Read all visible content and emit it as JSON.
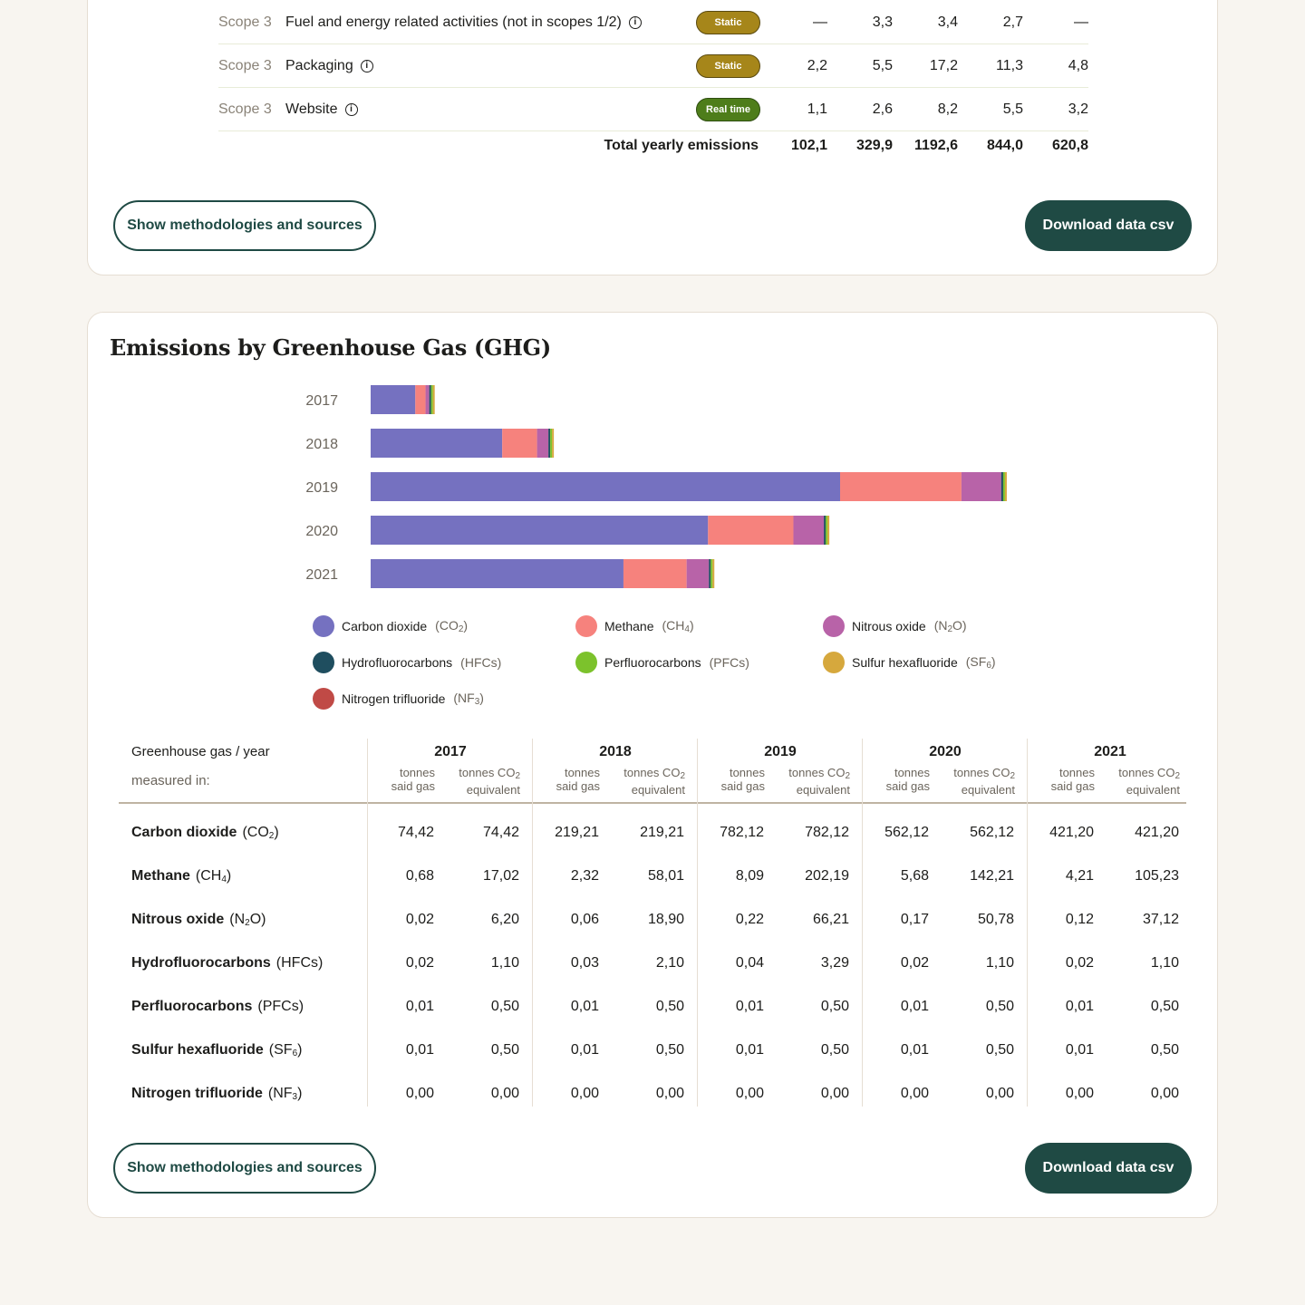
{
  "scope_table": {
    "rows": [
      {
        "scope": "Scope 3",
        "activity": "Fuel and energy related activities (not in scopes 1/2)",
        "badge": "Static",
        "values": [
          "—",
          "3,3",
          "3,4",
          "2,7",
          "—"
        ]
      },
      {
        "scope": "Scope 3",
        "activity": "Packaging",
        "badge": "Static",
        "values": [
          "2,2",
          "5,5",
          "17,2",
          "11,3",
          "4,8"
        ]
      },
      {
        "scope": "Scope 3",
        "activity": "Website",
        "badge": "Real time",
        "values": [
          "1,1",
          "2,6",
          "8,2",
          "5,5",
          "3,2"
        ]
      }
    ],
    "total": {
      "label": "Total yearly emissions",
      "values": [
        "102,1",
        "329,9",
        "1192,6",
        "844,0",
        "620,8"
      ]
    },
    "info_icon": "info-icon"
  },
  "buttons": {
    "methodology_label": "Show methodologies and sources",
    "download_label": "Download data csv"
  },
  "ghg": {
    "title": "Emissions by Greenhouse Gas (GHG)",
    "legend": [
      {
        "name": "Carbon dioxide",
        "symbol": "CO",
        "sub": "2",
        "color": "#7571c0"
      },
      {
        "name": "Methane",
        "symbol": "CH",
        "sub": "4",
        "color": "#f6827d"
      },
      {
        "name": "Nitrous oxide",
        "symbol": "N",
        "sub": "2",
        "tail": "O",
        "color": "#b863a8"
      },
      {
        "name": "Hydrofluorocarbons",
        "symbol": "HFCs",
        "sub": "",
        "color": "#1f4e5f"
      },
      {
        "name": "Perfluorocarbons",
        "symbol": "PFCs",
        "sub": "",
        "color": "#7cc22c"
      },
      {
        "name": "Sulfur hexafluoride",
        "symbol": "SF",
        "sub": "6",
        "color": "#d6a83d"
      },
      {
        "name": "Nitrogen trifluoride",
        "symbol": "NF",
        "sub": "3",
        "color": "#c04a46"
      }
    ],
    "table": {
      "header_label": "Greenhouse gas / year",
      "measured_label": "measured in:",
      "unit_said": [
        "tonnes",
        "said gas"
      ],
      "unit_co2": [
        "tonnes CO",
        "equivalent"
      ],
      "unit_co2_sub": "2",
      "years": [
        "2017",
        "2018",
        "2019",
        "2020",
        "2021"
      ],
      "rows": [
        {
          "name": "Carbon dioxide",
          "symbol": "CO",
          "sub": "2",
          "tail": "",
          "values": [
            "74,42",
            "74,42",
            "219,21",
            "219,21",
            "782,12",
            "782,12",
            "562,12",
            "562,12",
            "421,20",
            "421,20"
          ]
        },
        {
          "name": "Methane",
          "symbol": "CH",
          "sub": "4",
          "tail": "",
          "values": [
            "0,68",
            "17,02",
            "2,32",
            "58,01",
            "8,09",
            "202,19",
            "5,68",
            "142,21",
            "4,21",
            "105,23"
          ]
        },
        {
          "name": "Nitrous oxide",
          "symbol": "N",
          "sub": "2",
          "tail": "O",
          "values": [
            "0,02",
            "6,20",
            "0,06",
            "18,90",
            "0,22",
            "66,21",
            "0,17",
            "50,78",
            "0,12",
            "37,12"
          ]
        },
        {
          "name": "Hydrofluorocarbons",
          "symbol": "HFCs",
          "sub": "",
          "tail": "",
          "values": [
            "0,02",
            "1,10",
            "0,03",
            "2,10",
            "0,04",
            "3,29",
            "0,02",
            "1,10",
            "0,02",
            "1,10"
          ]
        },
        {
          "name": "Perfluorocarbons",
          "symbol": "PFCs",
          "sub": "",
          "tail": "",
          "values": [
            "0,01",
            "0,50",
            "0,01",
            "0,50",
            "0,01",
            "0,50",
            "0,01",
            "0,50",
            "0,01",
            "0,50"
          ]
        },
        {
          "name": "Sulfur hexafluoride",
          "symbol": "SF",
          "sub": "6",
          "tail": "",
          "values": [
            "0,01",
            "0,50",
            "0,01",
            "0,50",
            "0,01",
            "0,50",
            "0,01",
            "0,50",
            "0,01",
            "0,50"
          ]
        },
        {
          "name": "Nitrogen trifluoride",
          "symbol": "NF",
          "sub": "3",
          "tail": "",
          "values": [
            "0,00",
            "0,00",
            "0,00",
            "0,00",
            "0,00",
            "0,00",
            "0,00",
            "0,00",
            "0,00",
            "0,00"
          ]
        }
      ]
    }
  },
  "chart_data": {
    "type": "bar",
    "orientation": "horizontal",
    "stacked": true,
    "categories": [
      "2017",
      "2018",
      "2019",
      "2020",
      "2021"
    ],
    "series": [
      {
        "name": "Carbon dioxide",
        "values": [
          74.42,
          219.21,
          782.12,
          562.12,
          421.2
        ]
      },
      {
        "name": "Methane",
        "values": [
          17.02,
          58.01,
          202.19,
          142.21,
          105.23
        ]
      },
      {
        "name": "Nitrous oxide",
        "values": [
          6.2,
          18.9,
          66.21,
          50.78,
          37.12
        ]
      },
      {
        "name": "Hydrofluorocarbons",
        "values": [
          1.1,
          2.1,
          3.29,
          1.1,
          1.1
        ]
      },
      {
        "name": "Perfluorocarbons",
        "values": [
          0.5,
          0.5,
          0.5,
          0.5,
          0.5
        ]
      },
      {
        "name": "Sulfur hexafluoride",
        "values": [
          0.5,
          0.5,
          0.5,
          0.5,
          0.5
        ]
      },
      {
        "name": "Nitrogen trifluoride",
        "values": [
          0.0,
          0.0,
          0.0,
          0.0,
          0.0
        ]
      }
    ],
    "legend": "bottom",
    "grid": false
  }
}
